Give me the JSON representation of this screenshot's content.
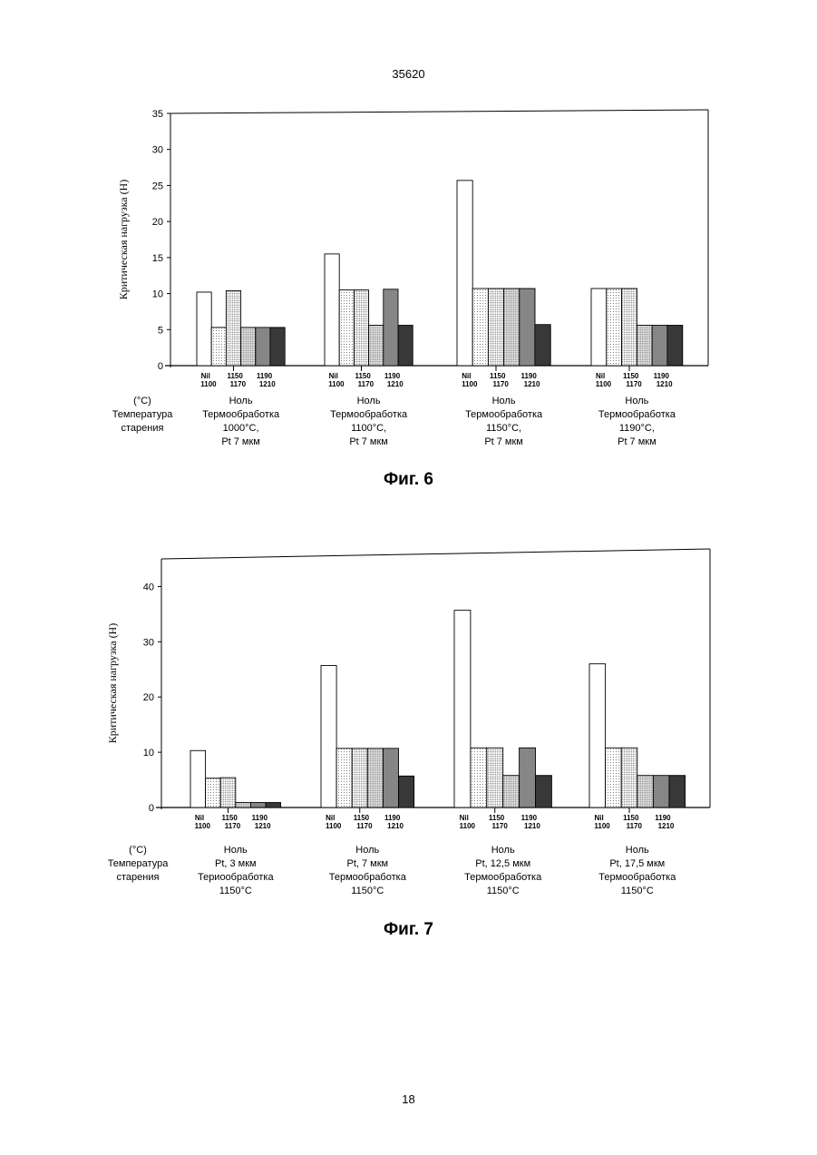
{
  "page": {
    "header_number": "35620",
    "footer_number": "18"
  },
  "shared": {
    "row_labels": [
      "(°C)",
      "Температура",
      "старения"
    ]
  },
  "chart_data": [
    {
      "type": "bar",
      "caption": "Фиг. 6",
      "ylabel": "Критическая нагрузка (Н)",
      "ylim": [
        0,
        35
      ],
      "yticks": [
        "0",
        "5",
        "10",
        "15",
        "20",
        "25",
        "30",
        "35"
      ],
      "grid": false,
      "category_keys": [
        "Nil",
        "1100",
        "1150",
        "1170",
        "1190",
        "1210"
      ],
      "series": [
        {
          "fill": "white"
        },
        {
          "fill": "dots-light"
        },
        {
          "fill": "dots"
        },
        {
          "fill": "dots-grey"
        },
        {
          "fill": "grey"
        },
        {
          "fill": "dark"
        }
      ],
      "groups": [
        {
          "label_lines": [
            "Ноль",
            "Термообработка",
            "1000°C,",
            "Pt 7 мкм"
          ],
          "tick_top": [
            "Nil",
            "1150",
            "1190"
          ],
          "tick_bottom": [
            "1100",
            "1170",
            "1210"
          ],
          "values": [
            10.2,
            5.3,
            10.4,
            5.3,
            5.3,
            5.3
          ]
        },
        {
          "label_lines": [
            "Ноль",
            "Термообработка",
            "1100°C,",
            "Pt 7 мкм"
          ],
          "tick_top": [
            "Nil",
            "1150",
            "1190"
          ],
          "tick_bottom": [
            "1100",
            "1170",
            "1210"
          ],
          "values": [
            15.5,
            10.5,
            10.5,
            5.6,
            10.6,
            5.6
          ]
        },
        {
          "label_lines": [
            "Ноль",
            "Термообработка",
            "1150°C,",
            "Pt 7 мкм"
          ],
          "tick_top": [
            "Nil",
            "1150",
            "1190"
          ],
          "tick_bottom": [
            "1100",
            "1170",
            "1210"
          ],
          "values": [
            25.7,
            10.7,
            10.7,
            10.7,
            10.7,
            5.7
          ]
        },
        {
          "label_lines": [
            "Ноль",
            "Термообработка",
            "1190°C,",
            "Pt 7 мкм"
          ],
          "tick_top": [
            "Nil",
            "1150",
            "1190"
          ],
          "tick_bottom": [
            "1100",
            "1170",
            "1210"
          ],
          "values": [
            10.7,
            10.7,
            10.7,
            5.6,
            5.6,
            5.6
          ]
        }
      ]
    },
    {
      "type": "bar",
      "caption": "Фиг. 7",
      "ylabel": "Критическая нагрузка (Н)",
      "ylim": [
        0,
        45
      ],
      "yticks": [
        "0",
        "10",
        "20",
        "30",
        "40"
      ],
      "grid": false,
      "category_keys": [
        "Nil",
        "1100",
        "1150",
        "1170",
        "1190",
        "1210"
      ],
      "series": [
        {
          "fill": "white"
        },
        {
          "fill": "dots-light"
        },
        {
          "fill": "dots"
        },
        {
          "fill": "dots-grey"
        },
        {
          "fill": "grey"
        },
        {
          "fill": "dark"
        }
      ],
      "groups": [
        {
          "label_lines": [
            "Ноль",
            "Pt, 3 мкм",
            "Териообработка",
            "1150°C"
          ],
          "tick_top": [
            "Nil",
            "1150",
            "1190"
          ],
          "tick_bottom": [
            "1100",
            "1170",
            "1210"
          ],
          "values": [
            10.3,
            5.3,
            5.4,
            0.9,
            0.9,
            0.9
          ]
        },
        {
          "label_lines": [
            "Ноль",
            "Pt, 7 мкм",
            "Термообработка",
            "1150°C"
          ],
          "tick_top": [
            "Nil",
            "1150",
            "1190"
          ],
          "tick_bottom": [
            "1100",
            "1170",
            "1210"
          ],
          "values": [
            25.7,
            10.7,
            10.7,
            10.7,
            10.7,
            5.7
          ]
        },
        {
          "label_lines": [
            "Ноль",
            "Pt, 12,5 мкм",
            "Термообработка",
            "1150°C"
          ],
          "tick_top": [
            "Nil",
            "1150",
            "1190"
          ],
          "tick_bottom": [
            "1100",
            "1170",
            "1210"
          ],
          "values": [
            35.7,
            10.8,
            10.8,
            5.8,
            10.8,
            5.8
          ]
        },
        {
          "label_lines": [
            "Ноль",
            "Pt, 17,5 мкм",
            "Термообработка",
            "1150°C"
          ],
          "tick_top": [
            "Nil",
            "1150",
            "1190"
          ],
          "tick_bottom": [
            "1100",
            "1170",
            "1210"
          ],
          "values": [
            26.0,
            10.8,
            10.8,
            5.8,
            5.8,
            5.8
          ]
        }
      ]
    }
  ]
}
